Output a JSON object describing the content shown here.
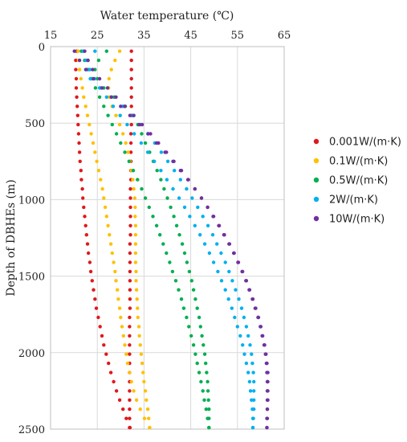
{
  "chart_data": {
    "type": "scatter",
    "xlabel": "Water temperature (℃)",
    "ylabel": "Depth of DBHEs (m)",
    "xlim": [
      15,
      65
    ],
    "ylim": [
      0,
      2500
    ],
    "y_inverted": true,
    "x_axis_position": "top",
    "x_ticks": [
      15,
      25,
      35,
      45,
      55,
      65
    ],
    "y_ticks": [
      0,
      500,
      1000,
      1500,
      2000,
      2500
    ],
    "grid": true,
    "legend_position": "right",
    "depth": [
      30,
      90,
      150,
      210,
      270,
      330,
      390,
      450,
      510,
      570,
      630,
      690,
      750,
      810,
      870,
      930,
      990,
      1050,
      1110,
      1170,
      1230,
      1290,
      1350,
      1410,
      1470,
      1530,
      1590,
      1650,
      1710,
      1770,
      1830,
      1890,
      1950,
      2010,
      2070,
      2130,
      2190,
      2250,
      2310,
      2370,
      2430,
      2490
    ],
    "series": [
      {
        "name": "0.001W/(m·K)",
        "color": "#e0181c",
        "inlet_temp": [
          32.3,
          32.3,
          32.3,
          32.3,
          32.3,
          32.3,
          32.3,
          32.3,
          32.3,
          32.2,
          32.2,
          32.2,
          32.2,
          32.2,
          32.2,
          32.1,
          32.1,
          32.1,
          32.1,
          32.1,
          32.1,
          32.0,
          32.0,
          32.0,
          32.0,
          32.0,
          32.0,
          32.0,
          32.0,
          31.9,
          31.9,
          31.9,
          31.9,
          31.9,
          31.9,
          31.9,
          31.9,
          31.9,
          31.9,
          31.9,
          31.9,
          31.9
        ],
        "outlet_temp": [
          20.6,
          20.4,
          20.4,
          20.5,
          20.5,
          20.6,
          20.7,
          20.8,
          20.9,
          21.0,
          21.1,
          21.2,
          21.3,
          21.5,
          21.6,
          21.8,
          21.9,
          22.1,
          22.3,
          22.5,
          22.7,
          22.9,
          23.1,
          23.4,
          23.6,
          23.9,
          24.2,
          24.5,
          24.8,
          25.2,
          25.6,
          26.0,
          26.4,
          26.9,
          27.4,
          27.9,
          28.5,
          29.1,
          29.8,
          30.5,
          31.2,
          32.0
        ]
      },
      {
        "name": "0.1W/(m·K)",
        "color": "#ffc000",
        "inlet_temp": [
          29.8,
          28.8,
          28.0,
          27.5,
          27.4,
          27.6,
          28.2,
          29.0,
          29.8,
          30.5,
          31.1,
          31.6,
          32.0,
          32.3,
          32.6,
          32.8,
          33.0,
          33.1,
          33.1,
          33.2,
          33.2,
          33.2,
          33.2,
          33.2,
          33.3,
          33.3,
          33.4,
          33.5,
          33.6,
          33.7,
          33.9,
          34.0,
          34.2,
          34.4,
          34.6,
          34.8,
          35.0,
          35.3,
          35.5,
          35.8,
          36.0,
          36.2
        ],
        "outlet_temp": [
          20.9,
          21.0,
          21.2,
          21.5,
          21.8,
          22.1,
          22.5,
          22.9,
          23.3,
          23.7,
          24.1,
          24.5,
          24.9,
          25.3,
          25.7,
          26.1,
          26.4,
          26.7,
          27.0,
          27.3,
          27.6,
          27.9,
          28.2,
          28.5,
          28.8,
          29.0,
          29.3,
          29.5,
          29.8,
          30.0,
          30.3,
          30.6,
          30.9,
          31.2,
          31.5,
          31.9,
          32.3,
          32.8,
          33.4,
          34.2,
          35.1,
          36.2
        ]
      },
      {
        "name": "0.5W/(m·K)",
        "color": "#00b050",
        "inlet_temp": [
          27.0,
          25.3,
          24.5,
          25.0,
          26.4,
          28.6,
          31.0,
          32.8,
          33.7,
          34.5,
          35.3,
          36.2,
          37.0,
          37.8,
          38.6,
          39.3,
          40.0,
          40.7,
          41.4,
          42.0,
          42.6,
          43.2,
          43.7,
          44.2,
          44.7,
          45.2,
          45.6,
          46.0,
          46.4,
          46.8,
          47.1,
          47.4,
          47.7,
          48.0,
          48.2,
          48.4,
          48.6,
          48.7,
          48.8,
          48.9,
          48.9,
          48.9
        ],
        "outlet_temp": [
          21.6,
          22.3,
          23.0,
          23.8,
          24.6,
          25.5,
          26.4,
          27.3,
          28.2,
          29.1,
          30.0,
          30.9,
          31.8,
          32.7,
          33.6,
          34.5,
          35.3,
          36.1,
          36.9,
          37.7,
          38.4,
          39.1,
          39.8,
          40.5,
          41.1,
          41.8,
          42.4,
          43.0,
          43.5,
          44.1,
          44.6,
          45.1,
          45.6,
          46.0,
          46.4,
          46.8,
          47.2,
          47.6,
          47.9,
          48.3,
          48.6,
          48.9
        ]
      },
      {
        "name": "2W/(m·K)",
        "color": "#00b0f0",
        "inlet_temp": [
          24.5,
          23.0,
          22.5,
          23.5,
          25.5,
          28.0,
          30.5,
          32.5,
          34.2,
          35.8,
          37.3,
          38.7,
          40.1,
          41.5,
          42.8,
          44.1,
          45.3,
          46.5,
          47.6,
          48.7,
          49.7,
          50.6,
          51.5,
          52.4,
          53.2,
          53.9,
          54.6,
          55.3,
          55.9,
          56.4,
          56.9,
          57.3,
          57.7,
          58.0,
          58.2,
          58.4,
          58.5,
          58.5,
          58.5,
          58.5,
          58.4,
          58.3
        ],
        "outlet_temp": [
          22.0,
          22.6,
          23.4,
          24.4,
          25.6,
          27.0,
          28.4,
          29.9,
          31.4,
          32.9,
          34.4,
          35.8,
          37.2,
          38.6,
          39.9,
          41.2,
          42.5,
          43.7,
          44.8,
          45.9,
          47.0,
          48.0,
          49.0,
          49.9,
          50.8,
          51.6,
          52.4,
          53.1,
          53.8,
          54.4,
          55.0,
          55.6,
          56.1,
          56.5,
          56.9,
          57.3,
          57.6,
          57.8,
          58.0,
          58.2,
          58.3,
          58.3
        ]
      },
      {
        "name": "10W/(m·K)",
        "color": "#7030a0",
        "inlet_temp": [
          20.1,
          21.2,
          22.6,
          24.2,
          26.0,
          28.0,
          30.0,
          32.0,
          34.0,
          35.9,
          37.7,
          39.5,
          41.2,
          42.8,
          44.4,
          45.9,
          47.3,
          48.6,
          49.9,
          51.1,
          52.2,
          53.3,
          54.3,
          55.2,
          56.1,
          56.9,
          57.6,
          58.3,
          58.9,
          59.5,
          60.0,
          60.4,
          60.8,
          61.1,
          61.3,
          61.5,
          61.5,
          61.5,
          61.5,
          61.4,
          61.3,
          61.3
        ],
        "outlet_temp": [
          22.3,
          23.0,
          24.0,
          25.5,
          27.2,
          29.0,
          30.9,
          32.8,
          34.6,
          36.4,
          38.1,
          39.8,
          41.4,
          43.0,
          44.5,
          45.9,
          47.3,
          48.6,
          49.8,
          51.0,
          52.1,
          53.2,
          54.2,
          55.1,
          56.0,
          56.8,
          57.5,
          58.2,
          58.8,
          59.4,
          59.9,
          60.3,
          60.7,
          61.0,
          61.2,
          61.3,
          61.4,
          61.4,
          61.4,
          61.4,
          61.4,
          61.3
        ]
      }
    ]
  }
}
